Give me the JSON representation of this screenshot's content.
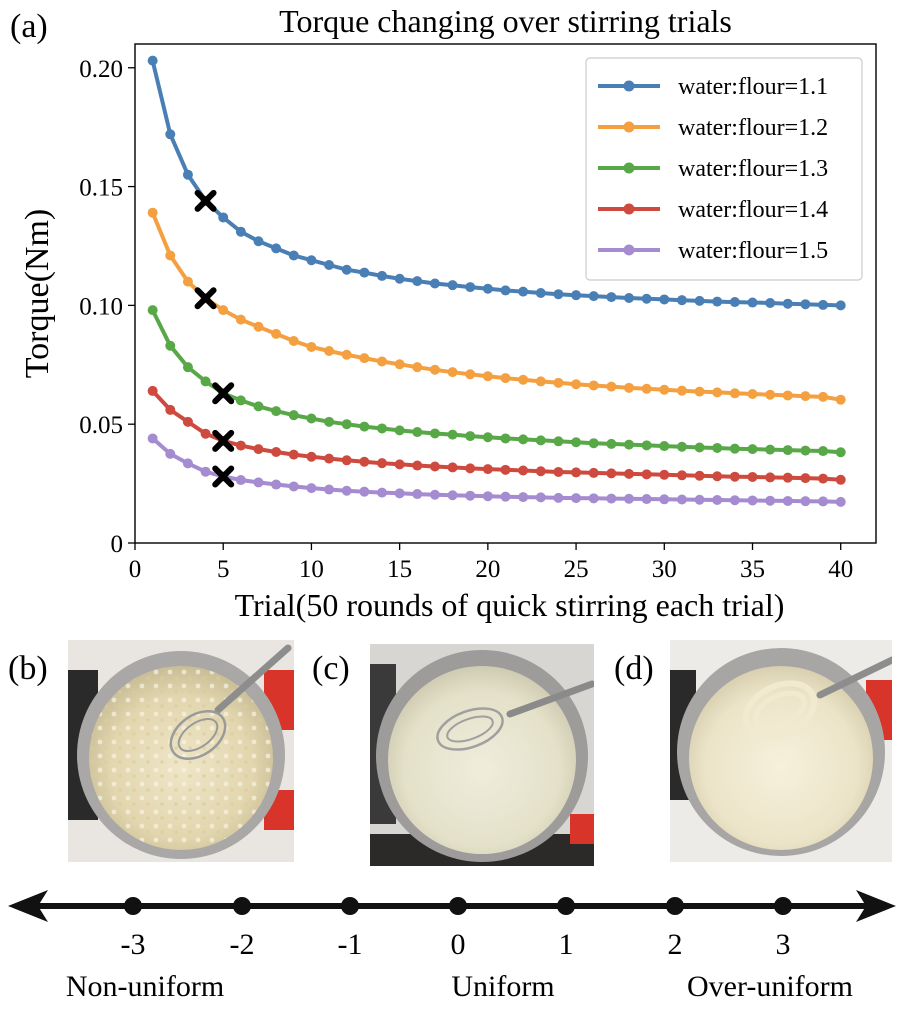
{
  "panels": {
    "a": "(a)",
    "b": "(b)",
    "c": "(c)",
    "d": "(d)"
  },
  "chart_data": {
    "type": "line",
    "title": "Torque changing over stirring trials",
    "xlabel": "Trial(50 rounds of quick stirring each trial)",
    "ylabel": "Torque(Nm)",
    "xlim": [
      0,
      42
    ],
    "ylim": [
      0,
      0.21
    ],
    "xticks": [
      0,
      5,
      10,
      15,
      20,
      25,
      30,
      35,
      40
    ],
    "yticks": [
      0,
      0.05,
      0.1,
      0.15,
      0.2
    ],
    "ytick_labels": [
      "0",
      "0.05",
      "0.10",
      "0.15",
      "0.20"
    ],
    "grid": false,
    "legend_position": "top-right",
    "x": [
      1,
      2,
      3,
      4,
      5,
      6,
      7,
      8,
      9,
      10,
      11,
      12,
      13,
      14,
      15,
      16,
      17,
      18,
      19,
      20,
      21,
      22,
      23,
      24,
      25,
      26,
      27,
      28,
      29,
      30,
      31,
      32,
      33,
      34,
      35,
      36,
      37,
      38,
      39,
      40
    ],
    "series": [
      {
        "name": "water:flour=1.1",
        "color": "#4a7fb5",
        "values": [
          0.203,
          0.172,
          0.155,
          0.144,
          0.137,
          0.131,
          0.127,
          0.124,
          0.121,
          0.119,
          0.117,
          0.115,
          0.1138,
          0.1124,
          0.1112,
          0.1102,
          0.1092,
          0.1085,
          0.1077,
          0.107,
          0.1063,
          0.1058,
          0.1052,
          0.1047,
          0.1043,
          0.1039,
          0.1035,
          0.1031,
          0.1028,
          0.1025,
          0.1022,
          0.1019,
          0.1016,
          0.1014,
          0.1012,
          0.101,
          0.1007,
          0.1005,
          0.1002,
          0.1
        ],
        "marker": {
          "x": 4,
          "y": 0.144
        }
      },
      {
        "name": "water:flour=1.2",
        "color": "#f4a040",
        "values": [
          0.139,
          0.121,
          0.11,
          0.103,
          0.098,
          0.094,
          0.091,
          0.088,
          0.085,
          0.0825,
          0.0808,
          0.0792,
          0.0778,
          0.0764,
          0.0752,
          0.074,
          0.0729,
          0.0719,
          0.071,
          0.0702,
          0.0694,
          0.0687,
          0.068,
          0.0674,
          0.0668,
          0.0663,
          0.0658,
          0.0653,
          0.0649,
          0.0645,
          0.0641,
          0.0637,
          0.0634,
          0.063,
          0.0627,
          0.0624,
          0.0621,
          0.0618,
          0.0615,
          0.0603
        ],
        "marker": {
          "x": 4,
          "y": 0.103
        }
      },
      {
        "name": "water:flour=1.3",
        "color": "#58a848",
        "values": [
          0.098,
          0.083,
          0.074,
          0.068,
          0.063,
          0.06,
          0.0575,
          0.0555,
          0.0538,
          0.0524,
          0.051,
          0.05,
          0.049,
          0.0482,
          0.0474,
          0.0467,
          0.0461,
          0.0456,
          0.045,
          0.0445,
          0.044,
          0.0436,
          0.0432,
          0.0428,
          0.0424,
          0.042,
          0.0417,
          0.0414,
          0.0411,
          0.0408,
          0.0405,
          0.0402,
          0.04,
          0.0397,
          0.0395,
          0.0393,
          0.0391,
          0.0389,
          0.0387,
          0.0382
        ],
        "marker": {
          "x": 5,
          "y": 0.063
        }
      },
      {
        "name": "water:flour=1.4",
        "color": "#cf4a3e",
        "values": [
          0.064,
          0.056,
          0.051,
          0.046,
          0.043,
          0.041,
          0.0395,
          0.0383,
          0.0372,
          0.0363,
          0.0355,
          0.0348,
          0.0342,
          0.0336,
          0.0331,
          0.0326,
          0.0322,
          0.0318,
          0.0314,
          0.0311,
          0.0308,
          0.0305,
          0.0302,
          0.0299,
          0.0297,
          0.0295,
          0.0293,
          0.0291,
          0.0289,
          0.0287,
          0.0285,
          0.0283,
          0.0281,
          0.0279,
          0.0278,
          0.0276,
          0.0275,
          0.0273,
          0.0271,
          0.0266
        ],
        "marker": {
          "x": 5,
          "y": 0.043
        }
      },
      {
        "name": "water:flour=1.5",
        "color": "#a58bd0",
        "values": [
          0.044,
          0.0375,
          0.0335,
          0.03,
          0.028,
          0.0265,
          0.0255,
          0.0246,
          0.0238,
          0.0231,
          0.0225,
          0.022,
          0.0216,
          0.0212,
          0.0209,
          0.0206,
          0.0203,
          0.0201,
          0.0199,
          0.0197,
          0.0195,
          0.0193,
          0.0192,
          0.019,
          0.0189,
          0.0188,
          0.0187,
          0.0186,
          0.0185,
          0.0184,
          0.0183,
          0.0182,
          0.0181,
          0.018,
          0.0179,
          0.0178,
          0.0177,
          0.0176,
          0.0175,
          0.0173
        ],
        "marker": {
          "x": 5,
          "y": 0.028
        }
      }
    ]
  },
  "photos": [
    {
      "id": "b",
      "description_icon": "non-uniform-batter-photo"
    },
    {
      "id": "c",
      "description_icon": "uniform-batter-photo"
    },
    {
      "id": "d",
      "description_icon": "over-uniform-batter-photo"
    }
  ],
  "scale": {
    "ticks": [
      "-3",
      "-2",
      "-1",
      "0",
      "1",
      "2",
      "3"
    ],
    "labels": {
      "left": "Non-uniform",
      "center": "Uniform",
      "right": "Over-uniform"
    }
  }
}
